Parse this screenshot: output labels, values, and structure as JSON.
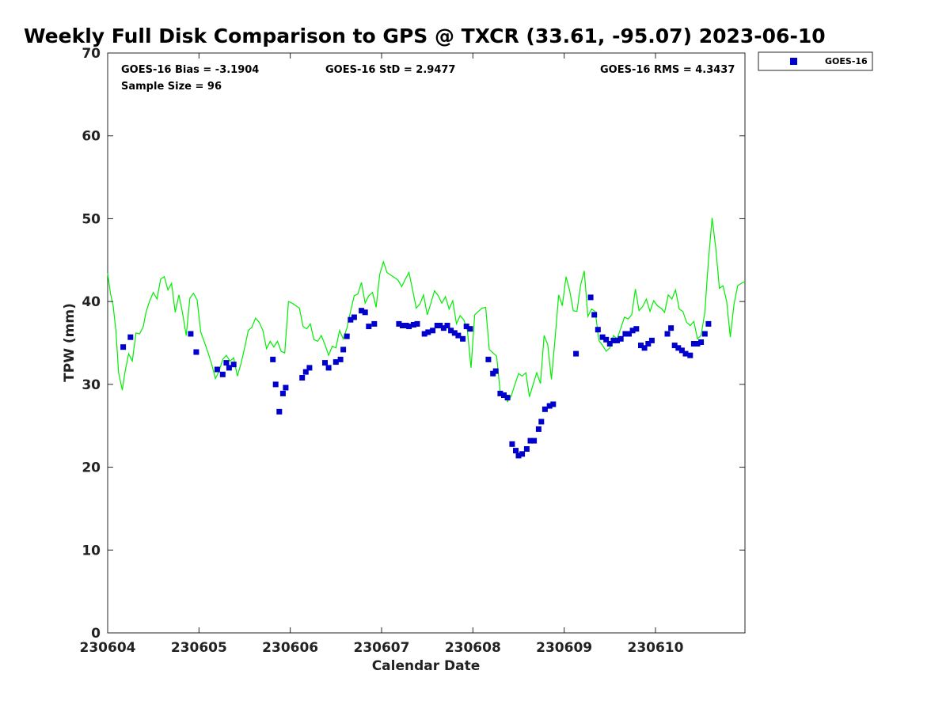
{
  "chart_data": {
    "type": "scatter",
    "title": "Weekly Full Disk Comparison to GPS @ TXCR (33.61, -95.07) 2023-06-10",
    "xlabel": "Calendar Date",
    "ylabel": "TPW (mm)",
    "xlim": [
      230604.0,
      230610.98
    ],
    "ylim": [
      0,
      70
    ],
    "x_ticks": [
      {
        "value": 230604,
        "label": "230604"
      },
      {
        "value": 230605,
        "label": "230605"
      },
      {
        "value": 230606,
        "label": "230606"
      },
      {
        "value": 230607,
        "label": "230607"
      },
      {
        "value": 230608,
        "label": "230608"
      },
      {
        "value": 230609,
        "label": "230609"
      },
      {
        "value": 230610,
        "label": "230610"
      }
    ],
    "y_ticks": [
      {
        "value": 0,
        "label": "0"
      },
      {
        "value": 10,
        "label": "10"
      },
      {
        "value": 20,
        "label": "20"
      },
      {
        "value": 30,
        "label": "30"
      },
      {
        "value": 40,
        "label": "40"
      },
      {
        "value": 50,
        "label": "50"
      },
      {
        "value": 60,
        "label": "60"
      },
      {
        "value": 70,
        "label": "70"
      }
    ],
    "stats": {
      "bias": "GOES-16 Bias = -3.1904",
      "std": "GOES-16 StD = 2.9477",
      "rms": "GOES-16 RMS = 4.3437",
      "sample": "Sample Size = 96"
    },
    "legend": {
      "position": "top-right-outside",
      "entries": [
        {
          "name": "GOES-16",
          "color": "#0000cc",
          "marker": "square"
        }
      ]
    },
    "colors": {
      "goes": "#0000cc",
      "gps": "#00ee00"
    },
    "gps_line": [
      [
        230604.0,
        43.4
      ],
      [
        230604.03,
        41.0
      ],
      [
        230604.06,
        39.5
      ],
      [
        230604.09,
        36.5
      ],
      [
        230604.12,
        31.4
      ],
      [
        230604.16,
        29.3
      ],
      [
        230604.19,
        31.5
      ],
      [
        230604.23,
        33.7
      ],
      [
        230604.27,
        32.8
      ],
      [
        230604.31,
        36.2
      ],
      [
        230604.35,
        36.1
      ],
      [
        230604.39,
        37.0
      ],
      [
        230604.42,
        38.7
      ],
      [
        230604.46,
        40.1
      ],
      [
        230604.5,
        41.1
      ],
      [
        230604.54,
        40.3
      ],
      [
        230604.58,
        42.7
      ],
      [
        230604.62,
        43.0
      ],
      [
        230604.66,
        41.4
      ],
      [
        230604.7,
        42.2
      ],
      [
        230604.74,
        38.7
      ],
      [
        230604.78,
        40.8
      ],
      [
        230604.82,
        38.6
      ],
      [
        230604.86,
        35.9
      ],
      [
        230604.9,
        40.4
      ],
      [
        230604.94,
        41.0
      ],
      [
        230604.98,
        40.2
      ],
      [
        230605.02,
        36.3
      ],
      [
        230605.06,
        35.1
      ],
      [
        230605.1,
        33.8
      ],
      [
        230605.14,
        32.4
      ],
      [
        230605.18,
        30.7
      ],
      [
        230605.22,
        31.6
      ],
      [
        230605.26,
        33.0
      ],
      [
        230605.3,
        33.5
      ],
      [
        230605.34,
        32.8
      ],
      [
        230605.38,
        33.2
      ],
      [
        230605.42,
        31.0
      ],
      [
        230605.46,
        32.5
      ],
      [
        230605.5,
        34.4
      ],
      [
        230605.54,
        36.5
      ],
      [
        230605.58,
        36.9
      ],
      [
        230605.62,
        38.0
      ],
      [
        230605.66,
        37.5
      ],
      [
        230605.7,
        36.5
      ],
      [
        230605.74,
        34.3
      ],
      [
        230605.78,
        35.2
      ],
      [
        230605.82,
        34.5
      ],
      [
        230605.86,
        35.2
      ],
      [
        230605.9,
        34.0
      ],
      [
        230605.94,
        33.8
      ],
      [
        230605.98,
        40.0
      ],
      [
        230606.02,
        39.8
      ],
      [
        230606.06,
        39.5
      ],
      [
        230606.1,
        39.2
      ],
      [
        230606.14,
        37.0
      ],
      [
        230606.18,
        36.7
      ],
      [
        230606.22,
        37.3
      ],
      [
        230606.26,
        35.4
      ],
      [
        230606.3,
        35.2
      ],
      [
        230606.34,
        35.9
      ],
      [
        230606.38,
        34.8
      ],
      [
        230606.42,
        33.5
      ],
      [
        230606.46,
        34.6
      ],
      [
        230606.5,
        34.4
      ],
      [
        230606.54,
        36.5
      ],
      [
        230606.58,
        35.5
      ],
      [
        230606.62,
        36.8
      ],
      [
        230606.66,
        38.8
      ],
      [
        230606.7,
        40.7
      ],
      [
        230606.74,
        40.9
      ],
      [
        230606.78,
        42.3
      ],
      [
        230606.82,
        39.8
      ],
      [
        230606.86,
        40.7
      ],
      [
        230606.9,
        41.1
      ],
      [
        230606.94,
        39.3
      ],
      [
        230606.98,
        43.3
      ],
      [
        230607.02,
        44.8
      ],
      [
        230607.06,
        43.5
      ],
      [
        230607.1,
        43.2
      ],
      [
        230607.14,
        42.9
      ],
      [
        230607.18,
        42.6
      ],
      [
        230607.22,
        41.8
      ],
      [
        230607.26,
        42.7
      ],
      [
        230607.3,
        43.5
      ],
      [
        230607.34,
        41.4
      ],
      [
        230607.38,
        39.2
      ],
      [
        230607.42,
        39.7
      ],
      [
        230607.46,
        40.8
      ],
      [
        230607.5,
        38.4
      ],
      [
        230607.54,
        39.8
      ],
      [
        230607.58,
        41.3
      ],
      [
        230607.62,
        40.7
      ],
      [
        230607.66,
        39.8
      ],
      [
        230607.7,
        40.6
      ],
      [
        230607.74,
        39.1
      ],
      [
        230607.78,
        40.1
      ],
      [
        230607.82,
        37.3
      ],
      [
        230607.86,
        38.3
      ],
      [
        230607.9,
        37.8
      ],
      [
        230607.94,
        36.5
      ],
      [
        230607.98,
        32.0
      ],
      [
        230608.02,
        38.4
      ],
      [
        230608.06,
        38.8
      ],
      [
        230608.1,
        39.2
      ],
      [
        230608.14,
        39.3
      ],
      [
        230608.18,
        34.2
      ],
      [
        230608.22,
        33.8
      ],
      [
        230608.26,
        33.4
      ],
      [
        230608.3,
        29.0
      ],
      [
        230608.34,
        28.9
      ],
      [
        230608.38,
        27.9
      ],
      [
        230608.42,
        28.6
      ],
      [
        230608.46,
        30.0
      ],
      [
        230608.5,
        31.3
      ],
      [
        230608.54,
        31.0
      ],
      [
        230608.58,
        31.4
      ],
      [
        230608.62,
        28.5
      ],
      [
        230608.66,
        30.0
      ],
      [
        230608.7,
        31.4
      ],
      [
        230608.74,
        30.1
      ],
      [
        230608.78,
        35.9
      ],
      [
        230608.82,
        34.8
      ],
      [
        230608.86,
        30.6
      ],
      [
        230608.9,
        35.5
      ],
      [
        230608.94,
        40.8
      ],
      [
        230608.98,
        39.5
      ],
      [
        230609.02,
        43.0
      ],
      [
        230609.06,
        41.3
      ],
      [
        230609.1,
        38.9
      ],
      [
        230609.14,
        38.8
      ],
      [
        230609.18,
        42.0
      ],
      [
        230609.22,
        43.7
      ],
      [
        230609.26,
        38.2
      ],
      [
        230609.3,
        39.1
      ],
      [
        230609.34,
        38.8
      ],
      [
        230609.38,
        35.3
      ],
      [
        230609.42,
        34.7
      ],
      [
        230609.46,
        34.0
      ],
      [
        230609.5,
        34.4
      ],
      [
        230609.54,
        35.9
      ],
      [
        230609.58,
        35.5
      ],
      [
        230609.62,
        36.8
      ],
      [
        230609.66,
        38.1
      ],
      [
        230609.7,
        37.9
      ],
      [
        230609.74,
        38.4
      ],
      [
        230609.78,
        41.5
      ],
      [
        230609.82,
        38.9
      ],
      [
        230609.86,
        39.4
      ],
      [
        230609.9,
        40.3
      ],
      [
        230609.94,
        38.8
      ],
      [
        230609.98,
        40.1
      ],
      [
        230610.02,
        39.5
      ],
      [
        230610.06,
        39.2
      ],
      [
        230610.1,
        38.7
      ],
      [
        230610.14,
        40.8
      ],
      [
        230610.18,
        40.3
      ],
      [
        230610.22,
        41.4
      ],
      [
        230610.26,
        39.1
      ],
      [
        230610.3,
        38.8
      ],
      [
        230610.34,
        37.5
      ],
      [
        230610.38,
        37.1
      ],
      [
        230610.42,
        37.6
      ],
      [
        230610.46,
        35.5
      ],
      [
        230610.5,
        35.9
      ],
      [
        230610.54,
        38.7
      ],
      [
        230610.58,
        45.0
      ],
      [
        230610.62,
        50.1
      ],
      [
        230610.66,
        46.5
      ],
      [
        230610.7,
        41.6
      ],
      [
        230610.74,
        41.9
      ],
      [
        230610.78,
        40.0
      ],
      [
        230610.82,
        35.7
      ],
      [
        230610.86,
        39.7
      ],
      [
        230610.9,
        41.9
      ],
      [
        230610.94,
        42.2
      ],
      [
        230610.98,
        42.4
      ]
    ],
    "goes_points": [
      [
        230604.17,
        34.5
      ],
      [
        230604.25,
        35.7
      ],
      [
        230604.91,
        36.1
      ],
      [
        230604.97,
        33.9
      ],
      [
        230605.2,
        31.8
      ],
      [
        230605.26,
        31.2
      ],
      [
        230605.3,
        32.6
      ],
      [
        230605.33,
        32.0
      ],
      [
        230605.38,
        32.4
      ],
      [
        230605.81,
        33.0
      ],
      [
        230605.84,
        30.0
      ],
      [
        230605.88,
        26.7
      ],
      [
        230605.92,
        28.9
      ],
      [
        230605.95,
        29.6
      ],
      [
        230606.13,
        30.8
      ],
      [
        230606.17,
        31.5
      ],
      [
        230606.21,
        32.0
      ],
      [
        230606.38,
        32.6
      ],
      [
        230606.42,
        32.0
      ],
      [
        230606.5,
        32.7
      ],
      [
        230606.55,
        33.0
      ],
      [
        230606.58,
        34.2
      ],
      [
        230606.62,
        35.8
      ],
      [
        230606.66,
        37.8
      ],
      [
        230606.7,
        38.1
      ],
      [
        230606.78,
        38.9
      ],
      [
        230606.82,
        38.7
      ],
      [
        230606.86,
        37.0
      ],
      [
        230606.92,
        37.3
      ],
      [
        230607.19,
        37.3
      ],
      [
        230607.23,
        37.1
      ],
      [
        230607.27,
        37.1
      ],
      [
        230607.3,
        37.0
      ],
      [
        230607.35,
        37.2
      ],
      [
        230607.39,
        37.3
      ],
      [
        230607.47,
        36.1
      ],
      [
        230607.51,
        36.3
      ],
      [
        230607.56,
        36.5
      ],
      [
        230607.61,
        37.1
      ],
      [
        230607.64,
        37.1
      ],
      [
        230607.68,
        36.8
      ],
      [
        230607.72,
        37.1
      ],
      [
        230607.76,
        36.5
      ],
      [
        230607.8,
        36.2
      ],
      [
        230607.84,
        35.9
      ],
      [
        230607.89,
        35.5
      ],
      [
        230607.93,
        37.0
      ],
      [
        230607.97,
        36.7
      ],
      [
        230608.17,
        33.0
      ],
      [
        230608.22,
        31.3
      ],
      [
        230608.25,
        31.6
      ],
      [
        230608.3,
        28.9
      ],
      [
        230608.34,
        28.7
      ],
      [
        230608.38,
        28.4
      ],
      [
        230608.43,
        22.8
      ],
      [
        230608.47,
        22.0
      ],
      [
        230608.5,
        21.4
      ],
      [
        230608.54,
        21.6
      ],
      [
        230608.59,
        22.2
      ],
      [
        230608.63,
        23.2
      ],
      [
        230608.67,
        23.2
      ],
      [
        230608.72,
        24.6
      ],
      [
        230608.75,
        25.5
      ],
      [
        230608.79,
        27.0
      ],
      [
        230608.84,
        27.4
      ],
      [
        230608.88,
        27.6
      ],
      [
        230609.13,
        33.7
      ],
      [
        230609.29,
        40.5
      ],
      [
        230609.33,
        38.4
      ],
      [
        230609.37,
        36.6
      ],
      [
        230609.42,
        35.7
      ],
      [
        230609.46,
        35.4
      ],
      [
        230609.5,
        34.9
      ],
      [
        230609.54,
        35.3
      ],
      [
        230609.58,
        35.3
      ],
      [
        230609.62,
        35.5
      ],
      [
        230609.67,
        36.1
      ],
      [
        230609.71,
        36.1
      ],
      [
        230609.75,
        36.5
      ],
      [
        230609.79,
        36.7
      ],
      [
        230609.84,
        34.7
      ],
      [
        230609.88,
        34.4
      ],
      [
        230609.92,
        34.9
      ],
      [
        230609.96,
        35.3
      ],
      [
        230610.13,
        36.1
      ],
      [
        230610.17,
        36.8
      ],
      [
        230610.21,
        34.7
      ],
      [
        230610.25,
        34.4
      ],
      [
        230610.29,
        34.1
      ],
      [
        230610.33,
        33.7
      ],
      [
        230610.38,
        33.5
      ],
      [
        230610.42,
        34.9
      ],
      [
        230610.46,
        34.9
      ],
      [
        230610.5,
        35.1
      ],
      [
        230610.54,
        36.1
      ],
      [
        230610.58,
        37.3
      ]
    ]
  }
}
